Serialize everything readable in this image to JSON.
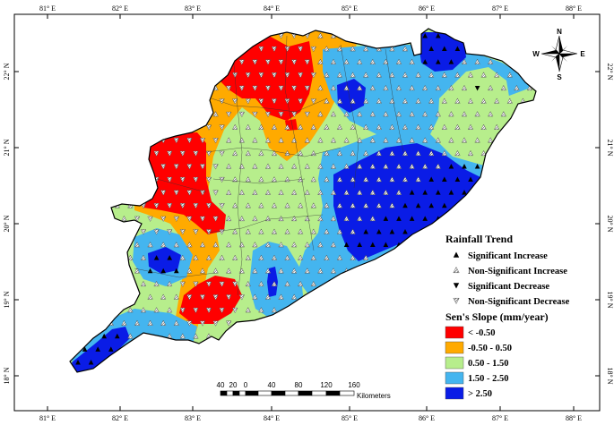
{
  "map": {
    "lon_ticks": [
      "81° E",
      "82° E",
      "83° E",
      "84° E",
      "85° E",
      "86° E",
      "87° E",
      "88° E"
    ],
    "lat_ticks": [
      "22° N",
      "21° N",
      "20° N",
      "19° N",
      "18° N"
    ],
    "trend_legend": {
      "title": "Rainfall Trend",
      "items": [
        {
          "label": "Significant Increase",
          "symbol": "filled-up-triangle"
        },
        {
          "label": "Non-Significant Increase",
          "symbol": "hatched-up-triangle"
        },
        {
          "label": "Significant Decrease",
          "symbol": "filled-down-triangle"
        },
        {
          "label": "Non-Significant Decrease",
          "symbol": "hatched-down-triangle"
        }
      ]
    },
    "slope_legend": {
      "title": "Sen's Slope (mm/year)",
      "classes": [
        {
          "label": "< -0.50",
          "color": "#ff0000"
        },
        {
          "label": "-0.50 - 0.50",
          "color": "#ffaa00"
        },
        {
          "label": "0.50 - 1.50",
          "color": "#b7ee8c"
        },
        {
          "label": "1.50 - 2.50",
          "color": "#44b5ef"
        },
        {
          "label": "> 2.50",
          "color": "#0a1ce6"
        }
      ]
    },
    "scale_bar": {
      "numbers": [
        "40",
        "20",
        "0",
        "40",
        "80",
        "120",
        "160"
      ],
      "unit": "Kilometers"
    },
    "compass": {
      "n": "N",
      "s": "S",
      "e": "E",
      "w": "W"
    }
  }
}
